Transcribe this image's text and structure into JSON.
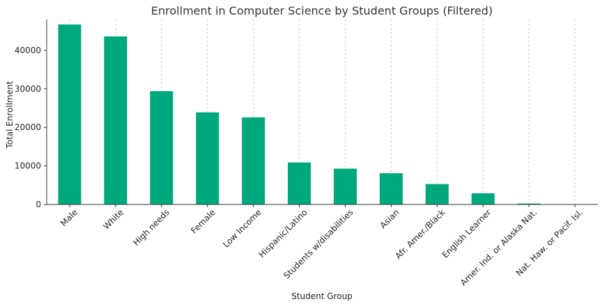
{
  "chart_data": {
    "type": "bar",
    "title": "Enrollment in Computer Science by Student Groups (Filtered)",
    "xlabel": "Student Group",
    "ylabel": "Total Enrollment",
    "categories": [
      "Male",
      "White",
      "High needs",
      "Female",
      "Low Income",
      "Hispanic/Latino",
      "Students w/disabilities",
      "Asian",
      "Afr. Amer./Black",
      "English Learner",
      "Amer. Ind. or Alaska Nat.",
      "Nat. Haw. or Pacif. Isl."
    ],
    "values": [
      46700,
      43600,
      29400,
      23900,
      22600,
      10900,
      9300,
      8100,
      5300,
      2900,
      250,
      80
    ],
    "ylim": [
      0,
      48000
    ],
    "yticks": [
      0,
      10000,
      20000,
      30000,
      40000
    ],
    "grid": "vertical",
    "bar_color": "#00a87e"
  }
}
